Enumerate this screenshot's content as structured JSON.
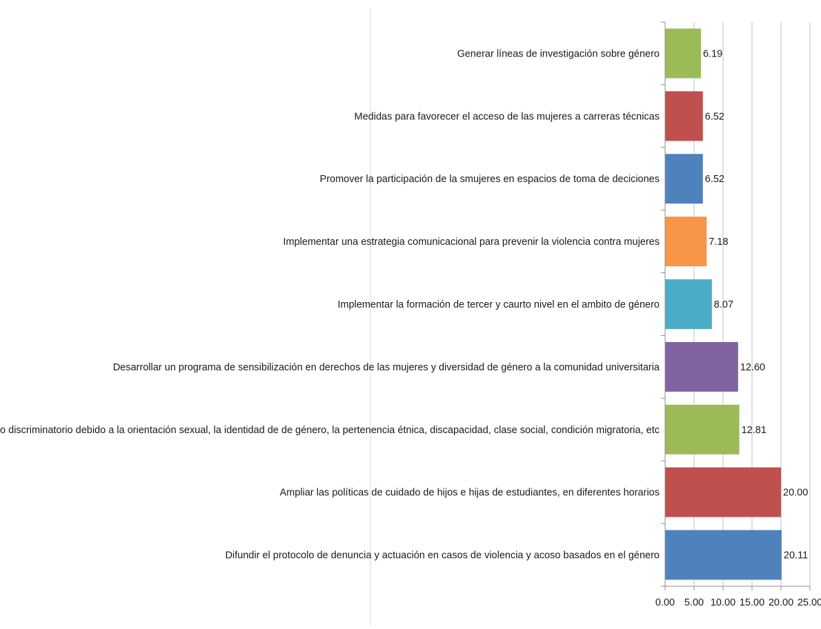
{
  "chart_data": {
    "type": "bar",
    "orientation": "horizontal",
    "title": "",
    "xlabel": "",
    "ylabel": "",
    "xlim": [
      0,
      25
    ],
    "x_ticks": [
      "0.00",
      "5.00",
      "10.00",
      "15.00",
      "20.00",
      "25.00"
    ],
    "grid": "vertical major gridlines",
    "legend": "none",
    "categories": [
      "Generar líneas de investigación sobre género",
      "Medidas para favorecer el acceso de las mujeres a carreras técnicas",
      "Promover la participación de la smujeres en espacios de toma de deciciones",
      "Implementar una estrategia comunicacional para prevenir la violencia contra mujeres",
      "Implementar la formación de tercer y caurto nivel en el ambito de género",
      "Desarrollar un programa de sensibilización en derechos de las mujeres y diversidad de género a la comunidad universitaria",
      "Prevenir el trato discriminatorio debido a la orientación sexual, la identidad de de género, la pertenencia étnica, discapacidad, clase social, condición migratoria, etc",
      "Ampliar las políticas de cuidado de hijos e hijas de estudiantes, en diferentes horarios",
      "Difundir el protocolo de denuncia y actuación en casos de violencia y acoso basados en el género"
    ],
    "values": [
      6.19,
      6.52,
      6.52,
      7.18,
      8.07,
      12.6,
      12.81,
      20.0,
      20.11
    ],
    "value_labels": [
      "6.19",
      "6.52",
      "6.52",
      "7.18",
      "8.07",
      "12.60",
      "12.81",
      "20.00",
      "20.11"
    ],
    "bar_colors": [
      "#9BBB59",
      "#C0504D",
      "#4F81BD",
      "#F79646",
      "#4BACC6",
      "#8064A2",
      "#9BBB59",
      "#C0504D",
      "#4F81BD"
    ]
  }
}
